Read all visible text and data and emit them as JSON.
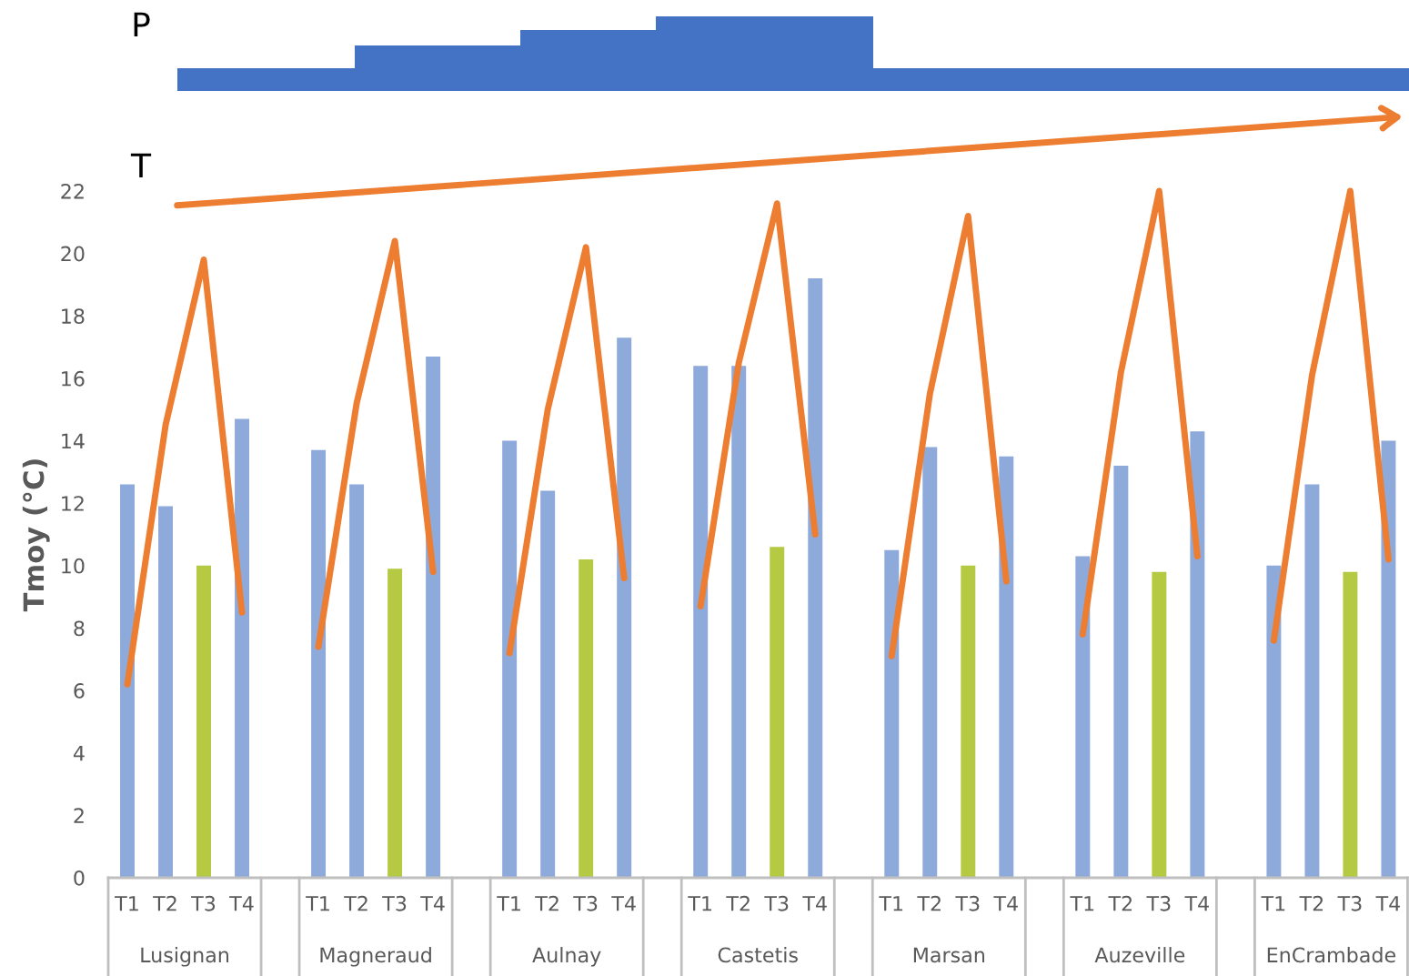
{
  "chart_data": {
    "type": "bar",
    "ylabel": "Tmoy (°C)",
    "categories": [
      "T1",
      "T2",
      "T3",
      "T4",
      null,
      "T1",
      "T2",
      "T3",
      "T4",
      null,
      "T1",
      "T2",
      "T3",
      "T4",
      null,
      "T1",
      "T2",
      "T3",
      "T4",
      null,
      "T1",
      "T2",
      "T3",
      "T4",
      null,
      "T1",
      "T2",
      "T3",
      "T4",
      null,
      "T1",
      "T2",
      "T3",
      "T4"
    ],
    "series": [
      {
        "colors": [
          "#8eaadb",
          "#8eaadb",
          "#b5c942",
          "#8eaadb",
          null,
          "#8eaadb",
          "#8eaadb",
          "#b5c942",
          "#8eaadb",
          null,
          "#8eaadb",
          "#8eaadb",
          "#b5c942",
          "#8eaadb",
          null,
          "#8eaadb",
          "#8eaadb",
          "#b5c942",
          "#8eaadb",
          null,
          "#8eaadb",
          "#8eaadb",
          "#b5c942",
          "#8eaadb",
          null,
          "#8eaadb",
          "#8eaadb",
          "#b5c942",
          "#8eaadb",
          null,
          "#8eaadb",
          "#8eaadb",
          "#b5c942",
          "#8eaadb"
        ],
        "values": [
          12.6,
          11.9,
          10.0,
          14.7,
          null,
          13.7,
          12.6,
          9.9,
          16.7,
          null,
          14.0,
          12.4,
          10.2,
          17.3,
          null,
          16.4,
          16.4,
          10.6,
          19.2,
          null,
          10.5,
          13.8,
          10.0,
          13.5,
          null,
          10.3,
          13.2,
          9.8,
          14.3,
          null,
          10.0,
          12.6,
          9.8,
          14.0
        ]
      },
      {
        "type": "line",
        "color": "#ed7d31",
        "values": [
          6.2,
          14.5,
          19.8,
          8.5,
          null,
          7.4,
          15.2,
          20.4,
          9.8,
          null,
          7.2,
          15.0,
          20.2,
          9.6,
          null,
          8.7,
          16.5,
          21.6,
          11.0,
          null,
          7.1,
          15.5,
          21.2,
          9.5,
          null,
          7.8,
          16.2,
          22.0,
          10.3,
          null,
          7.6,
          16.1,
          22.0,
          10.2
        ]
      }
    ],
    "ylim": [
      0,
      22
    ],
    "yticks": [
      0,
      2,
      4,
      6,
      8,
      10,
      12,
      14,
      16,
      18,
      20,
      22
    ],
    "grid": false,
    "legend": false,
    "annotations": [
      "Lusignan",
      "Magneraud",
      "Aulnay",
      "Castetis",
      "Marsan",
      "Auzeville",
      "EnCrambade",
      "P",
      "T"
    ]
  }
}
